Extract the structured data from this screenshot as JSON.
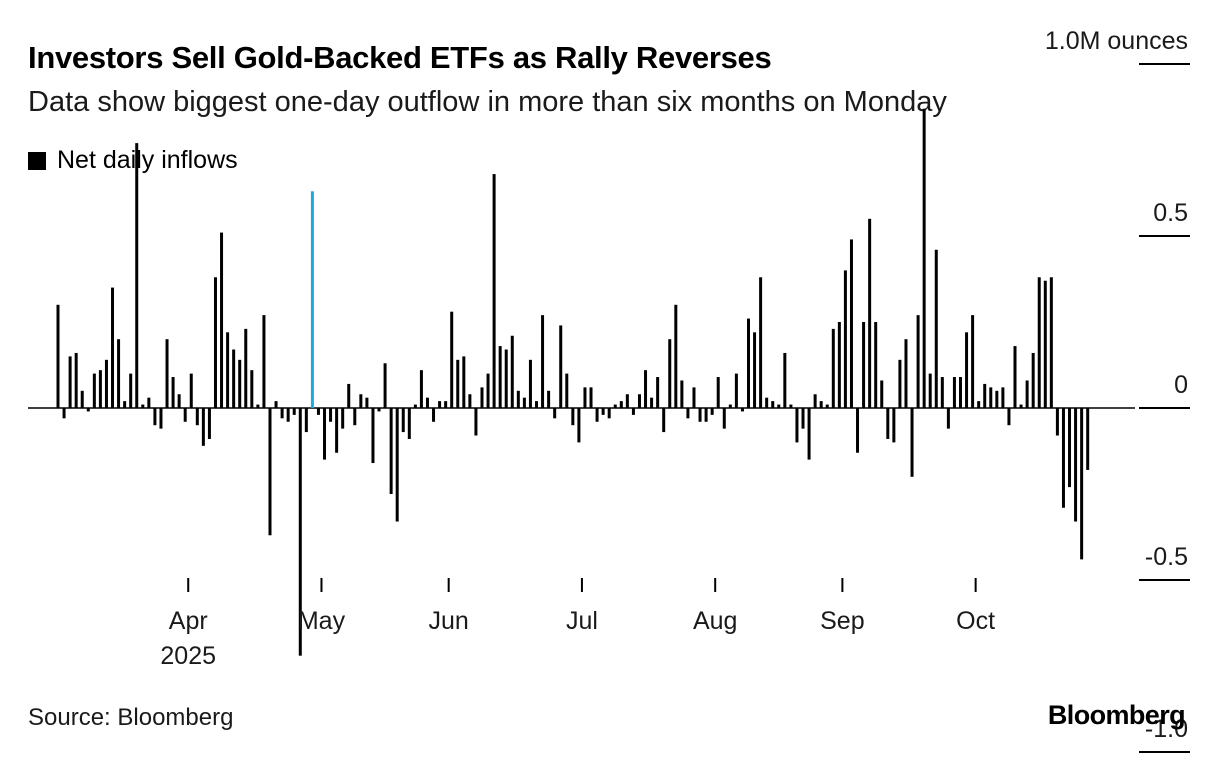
{
  "header": {
    "title": "Investors Sell Gold-Backed ETFs as Rally Reverses",
    "subtitle": "Data show biggest one-day outflow in more than six months on Monday"
  },
  "legend": {
    "label": "Net daily inflows"
  },
  "footer": {
    "source": "Source: Bloomberg",
    "brand": "Bloomberg"
  },
  "colors": {
    "bar": "#000000",
    "highlight": "#1fa8e0",
    "axis": "#000000"
  },
  "chart_data": {
    "type": "bar",
    "title": "Investors Sell Gold-Backed ETFs as Rally Reverses",
    "subtitle": "Data show biggest one-day outflow in more than six months on Monday",
    "series_name": "Net daily inflows",
    "unit_label": "1.0M ounces",
    "unit": "million ounces",
    "ylim": [
      -1.0,
      1.0
    ],
    "yticks": [
      {
        "value": 1.0,
        "label": "1.0M ounces"
      },
      {
        "value": 0.5,
        "label": "0.5"
      },
      {
        "value": 0,
        "label": "0"
      },
      {
        "value": -0.5,
        "label": "-0.5"
      },
      {
        "value": -1.0,
        "label": "-1.0"
      }
    ],
    "x_range": [
      0,
      174
    ],
    "month_ticks": [
      {
        "x": 21.5,
        "label": "Apr",
        "sublabel": "2025"
      },
      {
        "x": 43.5,
        "label": "May",
        "sublabel": ""
      },
      {
        "x": 64.5,
        "label": "Jun",
        "sublabel": ""
      },
      {
        "x": 86.5,
        "label": "Jul",
        "sublabel": ""
      },
      {
        "x": 108.5,
        "label": "Aug",
        "sublabel": ""
      },
      {
        "x": 129.5,
        "label": "Sep",
        "sublabel": ""
      },
      {
        "x": 151.5,
        "label": "Oct",
        "sublabel": ""
      }
    ],
    "highlighted_indices": [
      42,
      173
    ],
    "values": [
      0.3,
      -0.03,
      0.15,
      0.16,
      0.05,
      -0.01,
      0.1,
      0.11,
      0.14,
      0.35,
      0.2,
      0.02,
      0.1,
      0.77,
      0.01,
      0.03,
      -0.05,
      -0.06,
      0.2,
      0.09,
      0.04,
      -0.04,
      0.1,
      -0.05,
      -0.11,
      -0.09,
      0.38,
      0.51,
      0.22,
      0.17,
      0.14,
      0.23,
      0.11,
      0.01,
      0.27,
      -0.37,
      0.02,
      -0.03,
      -0.04,
      -0.02,
      -0.72,
      -0.07,
      0.63,
      -0.02,
      -0.15,
      -0.04,
      -0.13,
      -0.06,
      0.07,
      -0.05,
      0.04,
      0.03,
      -0.16,
      -0.01,
      0.13,
      -0.25,
      -0.33,
      -0.07,
      -0.09,
      0.01,
      0.11,
      0.03,
      -0.04,
      0.02,
      0.02,
      0.28,
      0.14,
      0.15,
      0.04,
      -0.08,
      0.06,
      0.1,
      0.68,
      0.18,
      0.17,
      0.21,
      0.05,
      0.03,
      0.14,
      0.02,
      0.27,
      0.05,
      -0.03,
      0.24,
      0.1,
      -0.05,
      -0.1,
      0.06,
      0.06,
      -0.04,
      -0.02,
      -0.03,
      0.01,
      0.02,
      0.04,
      -0.02,
      0.04,
      0.11,
      0.03,
      0.09,
      -0.07,
      0.2,
      0.3,
      0.08,
      -0.03,
      0.06,
      -0.04,
      -0.04,
      -0.02,
      0.09,
      -0.06,
      0.01,
      0.1,
      -0.01,
      0.26,
      0.22,
      0.38,
      0.03,
      0.02,
      0.01,
      0.16,
      0.01,
      -0.1,
      -0.06,
      -0.15,
      0.04,
      0.02,
      0.01,
      0.23,
      0.25,
      0.4,
      0.49,
      -0.13,
      0.25,
      0.55,
      0.25,
      0.08,
      -0.09,
      -0.1,
      0.14,
      0.2,
      -0.2,
      0.27,
      0.87,
      0.1,
      0.46,
      0.09,
      -0.06,
      0.09,
      0.09,
      0.22,
      0.27,
      0.02,
      0.07,
      0.06,
      0.05,
      0.06,
      -0.05,
      0.18,
      0.01,
      0.08,
      0.16,
      0.38,
      0.37,
      0.38,
      -0.08,
      -0.29,
      -0.23,
      -0.33,
      -0.44,
      -0.18
    ]
  }
}
